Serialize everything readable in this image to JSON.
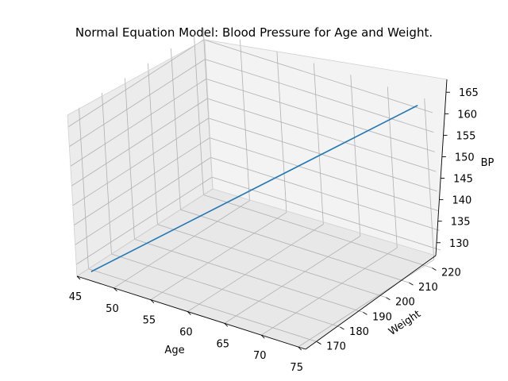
{
  "chart_data": {
    "type": "line",
    "projection": "3d",
    "title": "Normal Equation Model: Blood Pressure for Age and Weight.",
    "xlabel": "Age",
    "ylabel": "Weight",
    "zlabel": "BP",
    "xlim": [
      45,
      76
    ],
    "ylim": [
      165,
      224
    ],
    "zlim": [
      127,
      168
    ],
    "xticks": [
      45,
      50,
      55,
      60,
      65,
      70,
      75
    ],
    "yticks": [
      170,
      180,
      190,
      200,
      210,
      220
    ],
    "zticks": [
      130,
      135,
      140,
      145,
      150,
      155,
      160,
      165
    ],
    "grid": true,
    "series": [
      {
        "color": "#1f77b4",
        "points": [
          {
            "x": 46.5,
            "y": 166.5,
            "z": 128.5
          },
          {
            "x": 74.5,
            "y": 222.5,
            "z": 166.5
          }
        ]
      }
    ],
    "pane_color": "#f2f2f2",
    "grid_color": "#b0b0b0"
  }
}
